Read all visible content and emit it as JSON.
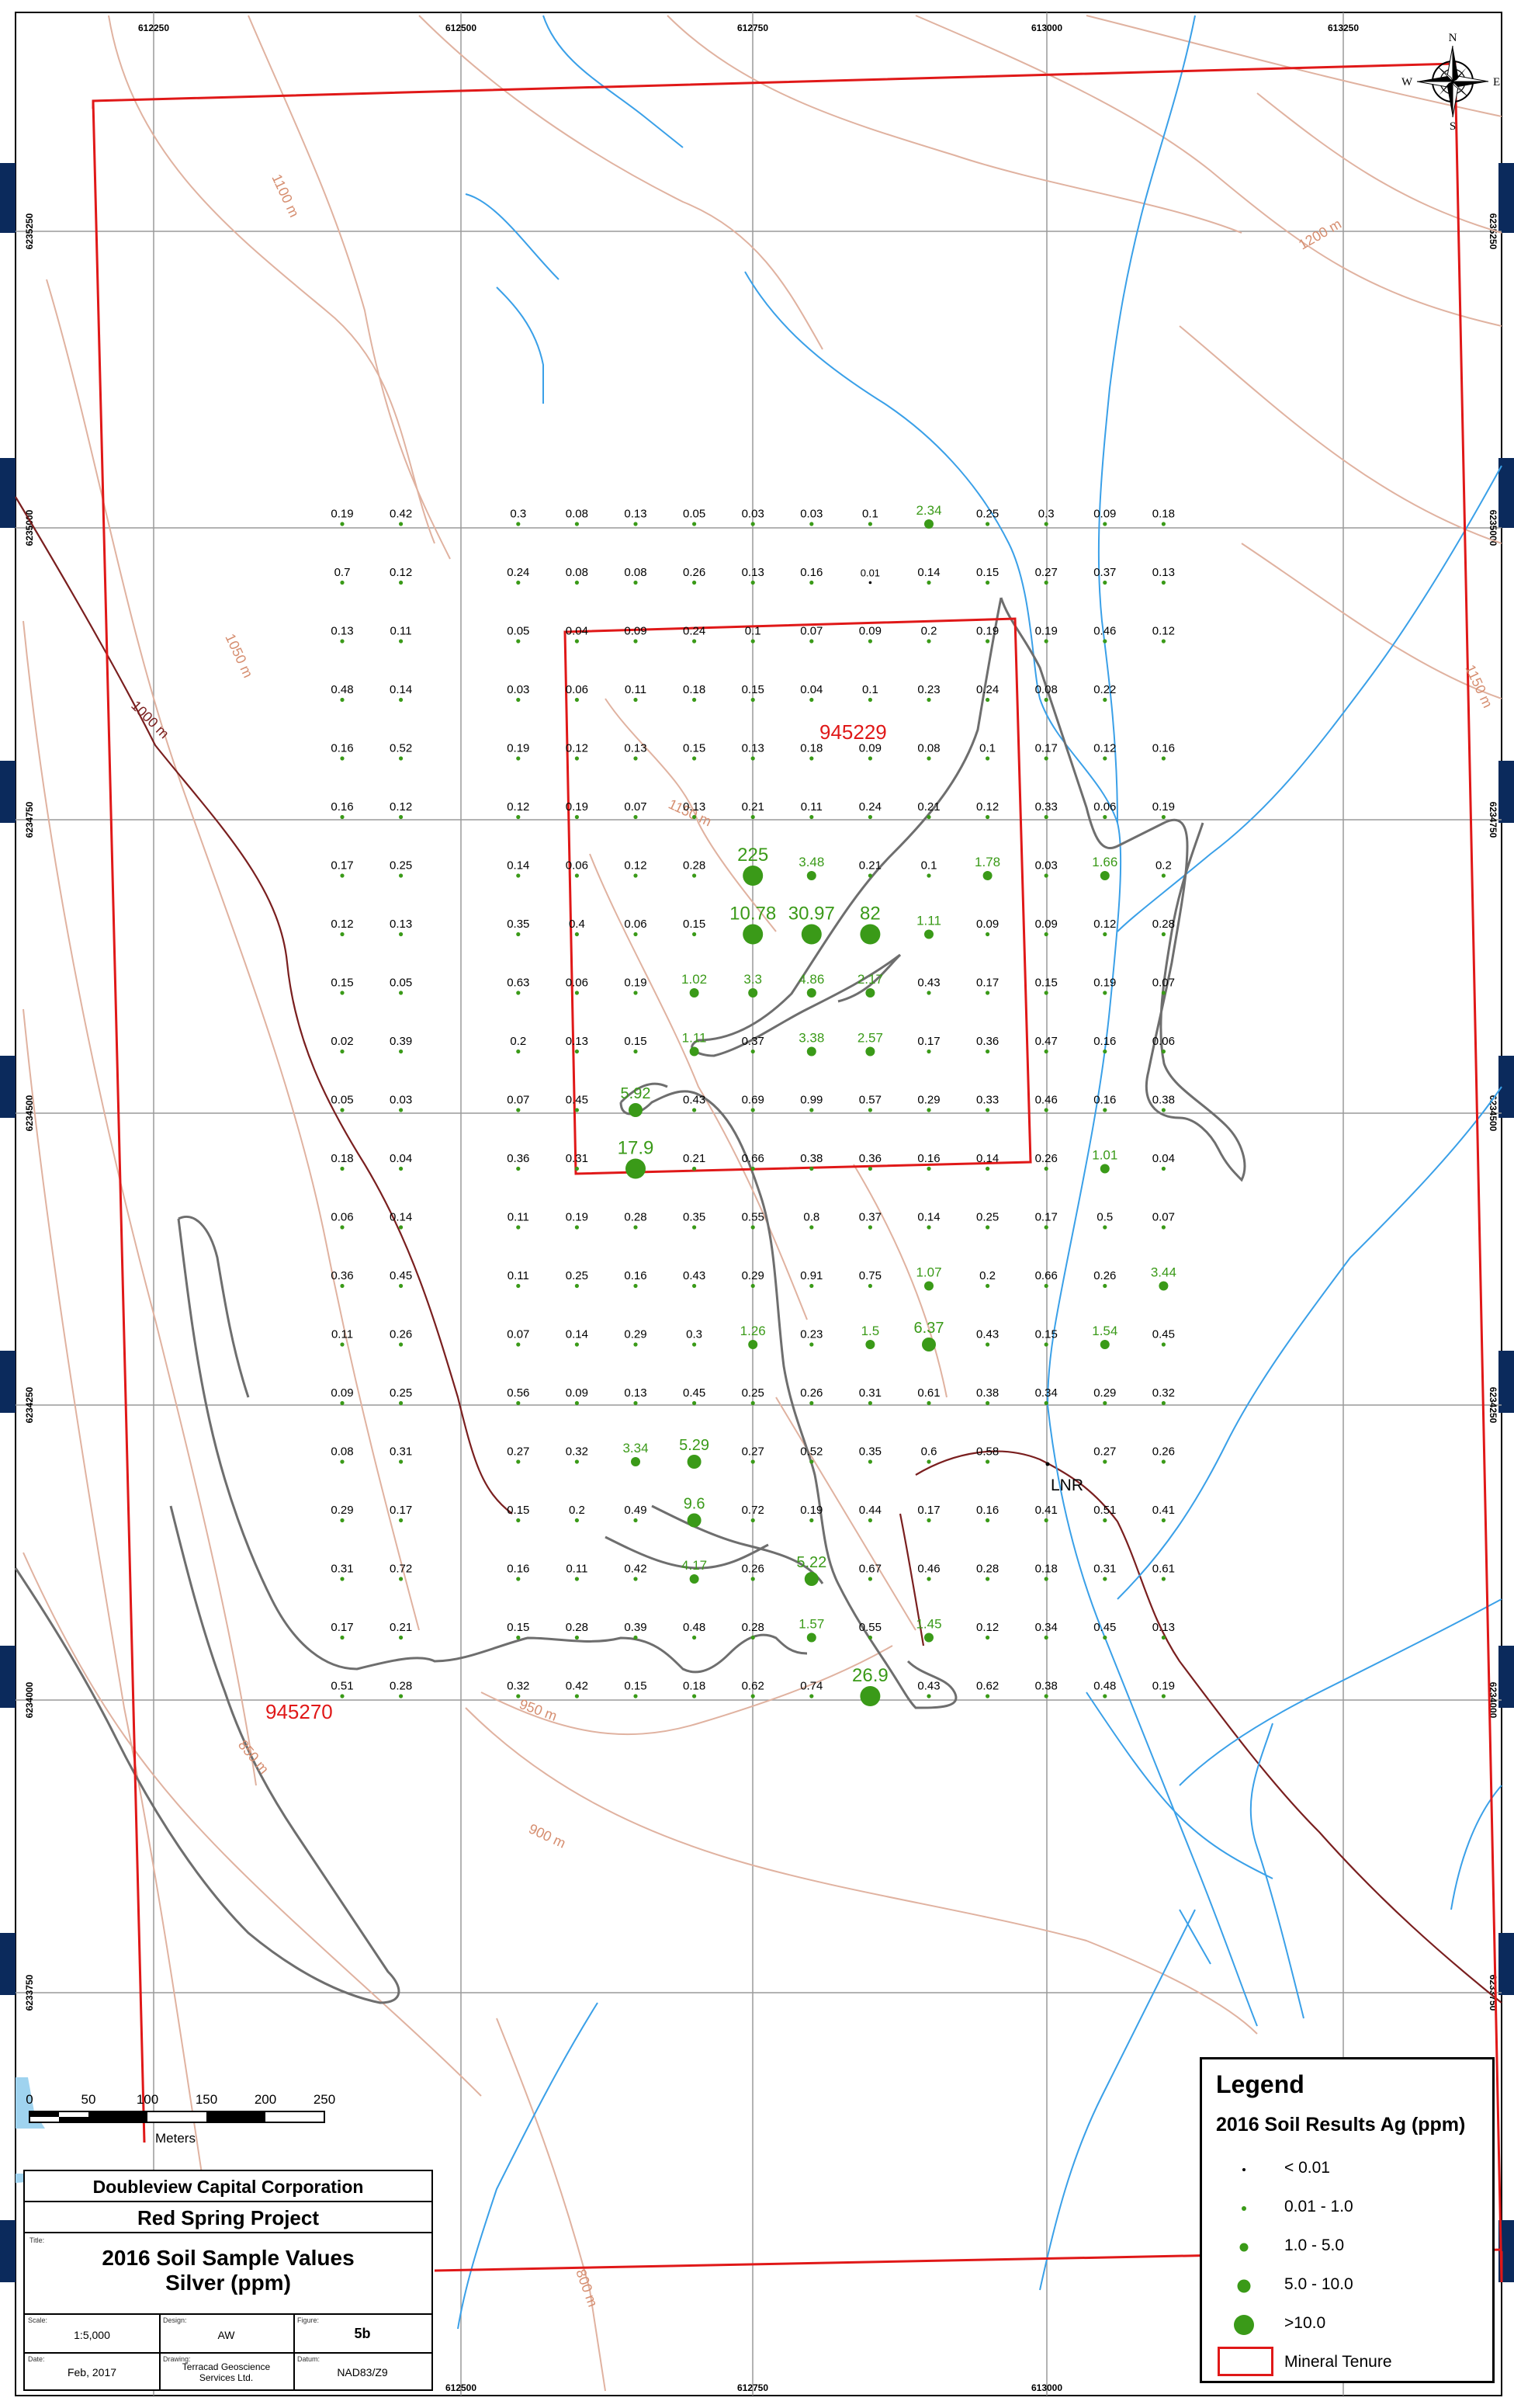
{
  "coords": {
    "eastings": [
      "612250",
      "612500",
      "612750",
      "613000",
      "613250"
    ],
    "northings": [
      "6235250",
      "6235000",
      "6234750",
      "6234500",
      "6234250",
      "6234000",
      "6233750"
    ]
  },
  "contour_labels": [
    {
      "text": "1100 m",
      "kind": "minor"
    },
    {
      "text": "1200 m",
      "kind": "minor"
    },
    {
      "text": "1050 m",
      "kind": "minor"
    },
    {
      "text": "1000 m",
      "kind": "major"
    },
    {
      "text": "1150 m",
      "kind": "minor"
    },
    {
      "text": "1150 m",
      "kind": "minor"
    },
    {
      "text": "950 m",
      "kind": "minor"
    },
    {
      "text": "850 m",
      "kind": "minor"
    },
    {
      "text": "900 m",
      "kind": "minor"
    },
    {
      "text": "800 m",
      "kind": "minor"
    }
  ],
  "tenures": [
    "945229",
    "945270"
  ],
  "lnr_label": "LNR",
  "samples": [
    [
      "0.19",
      "0.42",
      "",
      "0.3",
      "0.08",
      "0.13",
      "0.05",
      "0.03",
      "0.03",
      "0.1",
      "2.34",
      "0.25",
      "0.3",
      "0.09",
      "0.18"
    ],
    [
      "0.7",
      "0.12",
      "",
      "0.24",
      "0.08",
      "0.08",
      "0.26",
      "0.13",
      "0.16",
      "0.01",
      "0.14",
      "0.15",
      "0.27",
      "0.37",
      "0.13"
    ],
    [
      "0.13",
      "0.11",
      "",
      "0.05",
      "0.04",
      "0.09",
      "0.24",
      "0.1",
      "0.07",
      "0.09",
      "0.2",
      "0.19",
      "0.19",
      "0.46",
      "0.12"
    ],
    [
      "0.48",
      "0.14",
      "",
      "0.03",
      "0.06",
      "0.11",
      "0.18",
      "0.15",
      "0.04",
      "0.1",
      "0.23",
      "0.24",
      "0.08",
      "0.22",
      ""
    ],
    [
      "0.16",
      "0.52",
      "",
      "0.19",
      "0.12",
      "0.13",
      "0.15",
      "0.13",
      "0.18",
      "0.09",
      "0.08",
      "0.1",
      "0.17",
      "0.12",
      "0.16"
    ],
    [
      "0.16",
      "0.12",
      "",
      "0.12",
      "0.19",
      "0.07",
      "0.13",
      "0.21",
      "0.11",
      "0.24",
      "0.21",
      "0.12",
      "0.33",
      "0.06",
      "0.19"
    ],
    [
      "0.17",
      "0.25",
      "",
      "0.14",
      "0.06",
      "0.12",
      "0.28",
      "225",
      "3.48",
      "0.21",
      "0.1",
      "1.78",
      "0.03",
      "1.66",
      "0.2"
    ],
    [
      "0.12",
      "0.13",
      "",
      "0.35",
      "0.4",
      "0.06",
      "0.15",
      "10.78",
      "30.97",
      "82",
      "1.11",
      "0.09",
      "0.09",
      "0.12",
      "0.28"
    ],
    [
      "0.15",
      "0.05",
      "",
      "0.63",
      "0.06",
      "0.19",
      "1.02",
      "3.3",
      "4.86",
      "2.17",
      "0.43",
      "0.17",
      "0.15",
      "0.19",
      "0.07"
    ],
    [
      "0.02",
      "0.39",
      "",
      "0.2",
      "0.13",
      "0.15",
      "1.11",
      "0.37",
      "3.38",
      "2.57",
      "0.17",
      "0.36",
      "0.47",
      "0.16",
      "0.06"
    ],
    [
      "0.05",
      "0.03",
      "",
      "0.07",
      "0.45",
      "5.92",
      "0.43",
      "0.69",
      "0.99",
      "0.57",
      "0.29",
      "0.33",
      "0.46",
      "0.16",
      "0.38"
    ],
    [
      "0.18",
      "0.04",
      "",
      "0.36",
      "0.31",
      "17.9",
      "0.21",
      "0.66",
      "0.38",
      "0.36",
      "0.16",
      "0.14",
      "0.26",
      "1.01",
      "0.04"
    ],
    [
      "0.06",
      "0.14",
      "",
      "0.11",
      "0.19",
      "0.28",
      "0.35",
      "0.55",
      "0.8",
      "0.37",
      "0.14",
      "0.25",
      "0.17",
      "0.5",
      "0.07"
    ],
    [
      "0.36",
      "0.45",
      "",
      "0.11",
      "0.25",
      "0.16",
      "0.43",
      "0.29",
      "0.91",
      "0.75",
      "1.07",
      "0.2",
      "0.66",
      "0.26",
      "3.44"
    ],
    [
      "0.11",
      "0.26",
      "",
      "0.07",
      "0.14",
      "0.29",
      "0.3",
      "1.26",
      "0.23",
      "1.5",
      "6.37",
      "0.43",
      "0.15",
      "1.54",
      "0.45"
    ],
    [
      "0.09",
      "0.25",
      "",
      "0.56",
      "0.09",
      "0.13",
      "0.45",
      "0.25",
      "0.26",
      "0.31",
      "0.61",
      "0.38",
      "0.34",
      "0.29",
      "0.32"
    ],
    [
      "0.08",
      "0.31",
      "",
      "0.27",
      "0.32",
      "3.34",
      "5.29",
      "0.27",
      "0.52",
      "0.35",
      "0.6",
      "0.58",
      "",
      "0.27",
      "0.26"
    ],
    [
      "0.29",
      "0.17",
      "",
      "0.15",
      "0.2",
      "0.49",
      "9.6",
      "0.72",
      "0.19",
      "0.44",
      "0.17",
      "0.16",
      "0.41",
      "0.51",
      "0.41"
    ],
    [
      "0.31",
      "0.72",
      "",
      "0.16",
      "0.11",
      "0.42",
      "4.17",
      "0.26",
      "5.22",
      "0.67",
      "0.46",
      "0.28",
      "0.18",
      "0.31",
      "0.61"
    ],
    [
      "0.17",
      "0.21",
      "",
      "0.15",
      "0.28",
      "0.39",
      "0.48",
      "0.28",
      "1.57",
      "0.55",
      "1.45",
      "0.12",
      "0.34",
      "0.45",
      "0.13"
    ],
    [
      "0.51",
      "0.28",
      "",
      "0.32",
      "0.42",
      "0.15",
      "0.18",
      "0.62",
      "0.74",
      "26.9",
      "0.43",
      "0.62",
      "0.38",
      "0.48",
      "0.19"
    ]
  ],
  "legend": {
    "title": "Legend",
    "subtitle": "2016 Soil Results Ag (ppm)",
    "classes": [
      "< 0.01",
      "0.01 - 1.0",
      "1.0 - 5.0",
      "5.0 - 10.0",
      ">10.0"
    ],
    "tenure_label": "Mineral Tenure"
  },
  "scalebar": {
    "ticks": [
      "0",
      "50",
      "100",
      "150",
      "200",
      "250"
    ],
    "unit": "Meters"
  },
  "title_block": {
    "company": "Doubleview Capital Corporation",
    "project": "Red Spring Project",
    "title_tag": "Title:",
    "title_line1": "2016 Soil Sample Values",
    "title_line2": "Silver (ppm)",
    "scale_tag": "Scale:",
    "scale": "1:5,000",
    "design_tag": "Design:",
    "design": "AW",
    "figure_tag": "Figure:",
    "figure": "5b",
    "date_tag": "Date:",
    "date": "Feb, 2017",
    "drawing_tag": "Drawing:",
    "drawing_line1": "Terracad Geoscience",
    "drawing_line2": "Services Ltd.",
    "datum_tag": "Datum:",
    "datum": "NAD83/Z9"
  },
  "north_arrow": {
    "n": "N",
    "s": "S",
    "e": "E",
    "w": "W"
  },
  "colors": {
    "tenure": "#e01818",
    "symbol_green": "#3a9a18",
    "stream": "#3aa0e8",
    "contour_minor": "#e0b2a0",
    "contour_major": "#7a1f1f",
    "anomaly_outline": "#6e6e6e",
    "frame": "#0b2a5c"
  }
}
